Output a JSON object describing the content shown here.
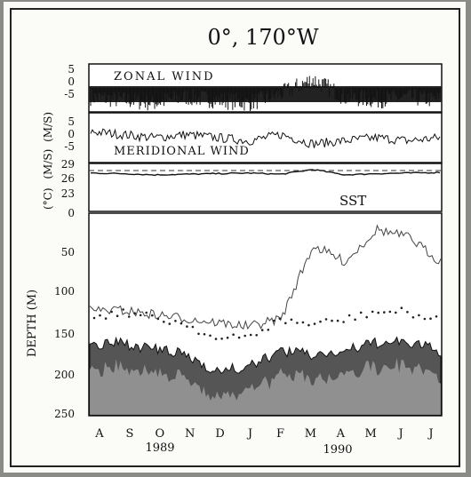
{
  "chart_data": {
    "type": "line",
    "title": "0°, 170°W",
    "panels": {
      "zonal": {
        "label": "ZONAL WIND",
        "ylabel": "(M/S)",
        "ticks": [
          "5",
          "0",
          "-5"
        ],
        "ylim": [
          -8,
          8
        ],
        "x": [
          0,
          1,
          2,
          3,
          4,
          5,
          6,
          7,
          8,
          9,
          10,
          11
        ],
        "values": [
          -3,
          -4,
          -5,
          -3,
          -4,
          -5,
          -2,
          3,
          -3,
          -4,
          -3,
          -4
        ]
      },
      "meridional": {
        "label": "MERIDIONAL WIND",
        "ylabel": "(M/S)",
        "ticks": [
          "5",
          "0",
          "-5"
        ],
        "ylim": [
          -8,
          8
        ],
        "x": [
          0,
          1,
          2,
          3,
          4,
          5,
          6,
          7,
          8,
          9,
          10,
          11
        ],
        "values": [
          2,
          1,
          0,
          1,
          0,
          -1,
          1,
          -2,
          -1,
          0,
          -1,
          0
        ]
      },
      "sst": {
        "label": "SST",
        "ylabel": "(°C)",
        "ticks": [
          "29",
          "26",
          "23"
        ],
        "ylim": [
          22,
          30
        ],
        "x": [
          0,
          1,
          2,
          3,
          4,
          5,
          6,
          7,
          8,
          9,
          10,
          11
        ],
        "values": [
          28.4,
          28.3,
          28.1,
          28.2,
          28.3,
          28.4,
          28.2,
          29.0,
          28.1,
          28.3,
          28.4,
          28.5
        ]
      },
      "depth": {
        "ylabel": "DEPTH (M)",
        "ticks": [
          "0",
          "50",
          "100",
          "150",
          "200",
          "250"
        ],
        "ylim": [
          0,
          250
        ],
        "x": [
          0,
          1,
          2,
          3,
          4,
          5,
          6,
          7,
          8,
          9,
          10,
          11
        ],
        "thermocline_top": [
          165,
          160,
          168,
          175,
          195,
          190,
          170,
          175,
          170,
          160,
          160,
          170
        ],
        "mixed_layer": [
          120,
          120,
          125,
          130,
          135,
          140,
          130,
          40,
          60,
          20,
          30,
          60
        ]
      }
    },
    "months": [
      "A",
      "S",
      "O",
      "N",
      "D",
      "J",
      "F",
      "M",
      "A",
      "M",
      "J",
      "J"
    ],
    "years": [
      "1989",
      "1990"
    ]
  }
}
